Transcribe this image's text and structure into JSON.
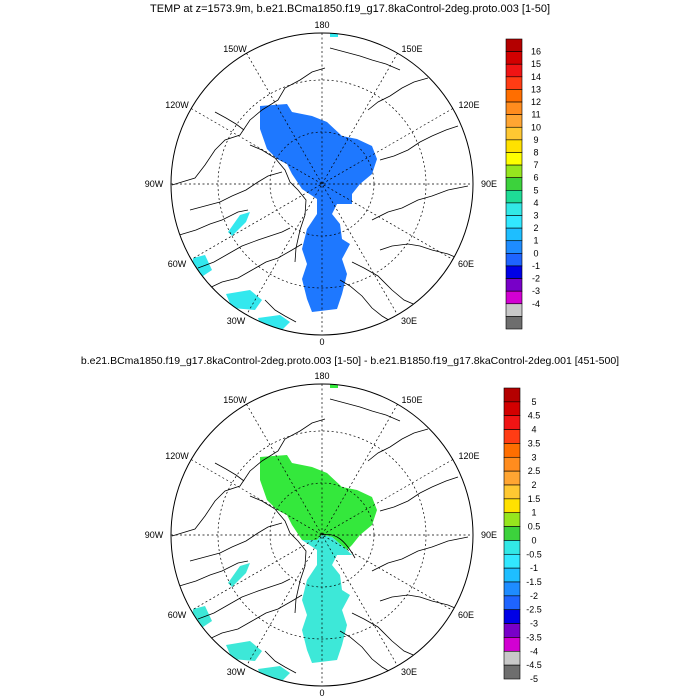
{
  "panels": [
    {
      "title": "TEMP at z=1573.9m, b.e21.BCma1850.f19_g17.8kaControl-2deg.proto.003 [1-50]",
      "fill_color": "#1e78ff",
      "secondary_fill_color": "#33e8ee",
      "colorbar": {
        "labels": [
          "16",
          "15",
          "14",
          "13",
          "12",
          "11",
          "10",
          "9",
          "8",
          "7",
          "6",
          "5",
          "4",
          "3",
          "2",
          "1",
          "0",
          "-1",
          "-2",
          "-3",
          "-4"
        ],
        "colors": [
          "#b40000",
          "#d20000",
          "#f01414",
          "#ff3c14",
          "#ff6e00",
          "#ff8c1e",
          "#ffa532",
          "#ffc832",
          "#ffe100",
          "#ffff00",
          "#96e61e",
          "#3cd23c",
          "#1edc96",
          "#32e8e6",
          "#32e8ff",
          "#1ebeff",
          "#1e8cff",
          "#1e64ff",
          "#0000e6",
          "#7800c8",
          "#d200d2",
          "#c8c8c8",
          "#6e6e6e"
        ]
      }
    },
    {
      "title": "b.e21.BCma1850.f19_g17.8kaControl-2deg.proto.003 [1-50] - b.e21.B1850.f19_g17.8kaControl-2deg.001 [451-500]",
      "fill_color": "#34e83c",
      "secondary_fill_color": "#3de8d8",
      "colorbar": {
        "labels": [
          "5",
          "4.5",
          "4",
          "3.5",
          "3",
          "2.5",
          "2",
          "1.5",
          "1",
          "0.5",
          "0",
          "-0.5",
          "-1",
          "-1.5",
          "-2",
          "-2.5",
          "-3",
          "-3.5",
          "-4",
          "-4.5",
          "-5"
        ],
        "colors": [
          "#b40000",
          "#d20000",
          "#f01414",
          "#ff3c14",
          "#ff6e00",
          "#ff8c1e",
          "#ffa532",
          "#ffc832",
          "#ffe100",
          "#96e61e",
          "#3cd23c",
          "#32e8e6",
          "#32e8ff",
          "#1ebeff",
          "#1e8cff",
          "#1e64ff",
          "#0000e6",
          "#7800c8",
          "#d200d2",
          "#c8c8c8",
          "#6e6e6e"
        ]
      }
    }
  ],
  "longitude_labels": {
    "top": "180",
    "top_left": "150W",
    "top_right": "150E",
    "upper_left": "120W",
    "upper_right": "120E",
    "left": "90W",
    "right": "90E",
    "lower_left": "60W",
    "lower_right": "60E",
    "bottom_left": "30W",
    "bottom_right": "30E",
    "bottom": "0"
  }
}
